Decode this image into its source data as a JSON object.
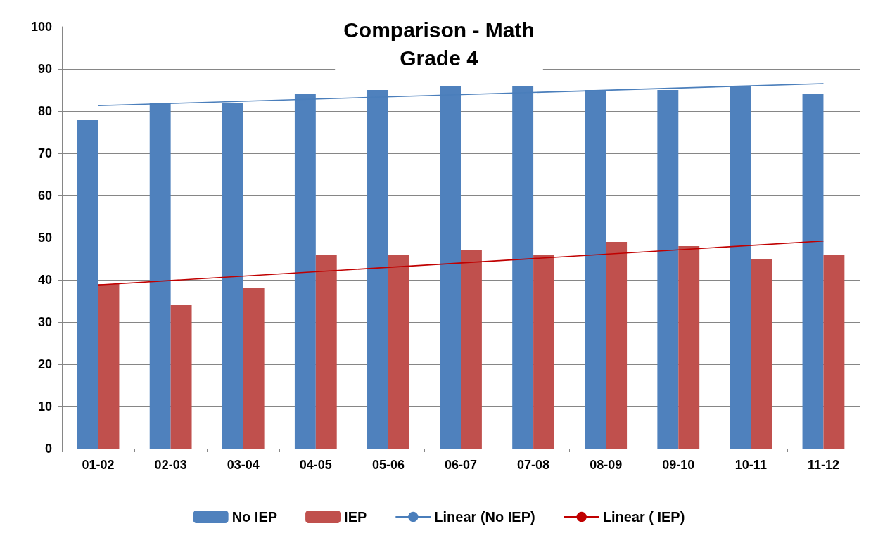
{
  "chart_data": {
    "type": "bar",
    "title": "Comparison - Math\nGrade 4",
    "categories": [
      "01-02",
      "02-03",
      "03-04",
      "04-05",
      "05-06",
      "06-07",
      "07-08",
      "08-09",
      "09-10",
      "10-11",
      "11-12"
    ],
    "series": [
      {
        "name": "No IEP",
        "color": "#4f81bd",
        "values": [
          78,
          82,
          82,
          84,
          85,
          86,
          86,
          85,
          85,
          86,
          84
        ]
      },
      {
        "name": "IEP",
        "color": "#c0504d",
        "values": [
          39,
          34,
          38,
          46,
          46,
          47,
          46,
          49,
          48,
          45,
          46
        ]
      },
      {
        "name": "Linear (No IEP)",
        "type": "line",
        "color": "#4a7ebb",
        "x": [
          "01-02",
          "11-12"
        ],
        "values": [
          81.3,
          86.5
        ]
      },
      {
        "name": "Linear ( IEP)",
        "type": "line",
        "color": "#c00000",
        "x": [
          "01-02",
          "11-12"
        ],
        "values": [
          38.8,
          49.2
        ]
      }
    ],
    "ylim": [
      0,
      100
    ],
    "yticks": [
      0,
      10,
      20,
      30,
      40,
      50,
      60,
      70,
      80,
      90,
      100
    ],
    "grid": "y",
    "legend": "bottom",
    "marker": "none",
    "line_style": "solid"
  }
}
